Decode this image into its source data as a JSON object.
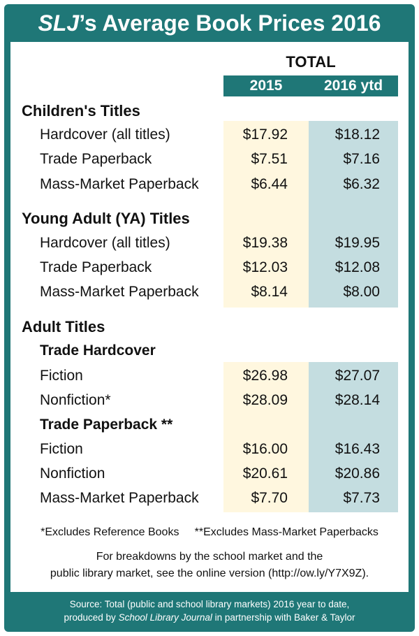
{
  "title": {
    "italic": "SLJ",
    "rest": "’s Average Book Prices 2016"
  },
  "header": {
    "total": "TOTAL",
    "year1": "2015",
    "year2": "2016 ytd"
  },
  "sections": {
    "children": "Children's Titles",
    "ya": "Young Adult (YA) Titles",
    "adult": "Adult Titles",
    "trade_hardcover": "Trade Hardcover",
    "trade_paperback": "Trade Paperback **"
  },
  "rows": [
    {
      "label": "Hardcover (all titles)",
      "v2015": "$17.92",
      "v2016": "$18.12"
    },
    {
      "label": "Trade Paperback",
      "v2015": "$7.51",
      "v2016": "$7.16"
    },
    {
      "label": "Mass-Market Paperback",
      "v2015": "$6.44",
      "v2016": "$6.32"
    },
    {
      "label": "Hardcover (all titles)",
      "v2015": "$19.38",
      "v2016": "$19.95"
    },
    {
      "label": "Trade Paperback",
      "v2015": "$12.03",
      "v2016": "$12.08"
    },
    {
      "label": "Mass-Market Paperback",
      "v2015": "$8.14",
      "v2016": "$8.00"
    },
    {
      "label": "Fiction",
      "v2015": "$26.98",
      "v2016": "$27.07"
    },
    {
      "label": "Nonfiction*",
      "v2015": "$28.09",
      "v2016": "$28.14"
    },
    {
      "label": "Fiction",
      "v2015": "$16.00",
      "v2016": "$16.43"
    },
    {
      "label": "Nonfiction",
      "v2015": "$20.61",
      "v2016": "$20.86"
    },
    {
      "label": "Mass-Market Paperback",
      "v2015": "$7.70",
      "v2016": "$7.73"
    }
  ],
  "footnotes": {
    "excludes": "*Excludes Reference Books     **Excludes Mass-Market Paperbacks",
    "breakdown1": "For breakdowns by the school market and the",
    "breakdown2": "public library market, see the online version (http://ow.ly/Y7X9Z)."
  },
  "source": {
    "line1": "Source: Total (public and school library markets) 2016 year to date,",
    "line2_pre": "produced by ",
    "line2_italic": "School Library Journal",
    "line2_post": " in partnership with Baker & Taylor"
  },
  "colors": {
    "teal": "#1f7777",
    "col2015_bg": "#fff7df",
    "col2016_bg": "#c4dde0"
  }
}
